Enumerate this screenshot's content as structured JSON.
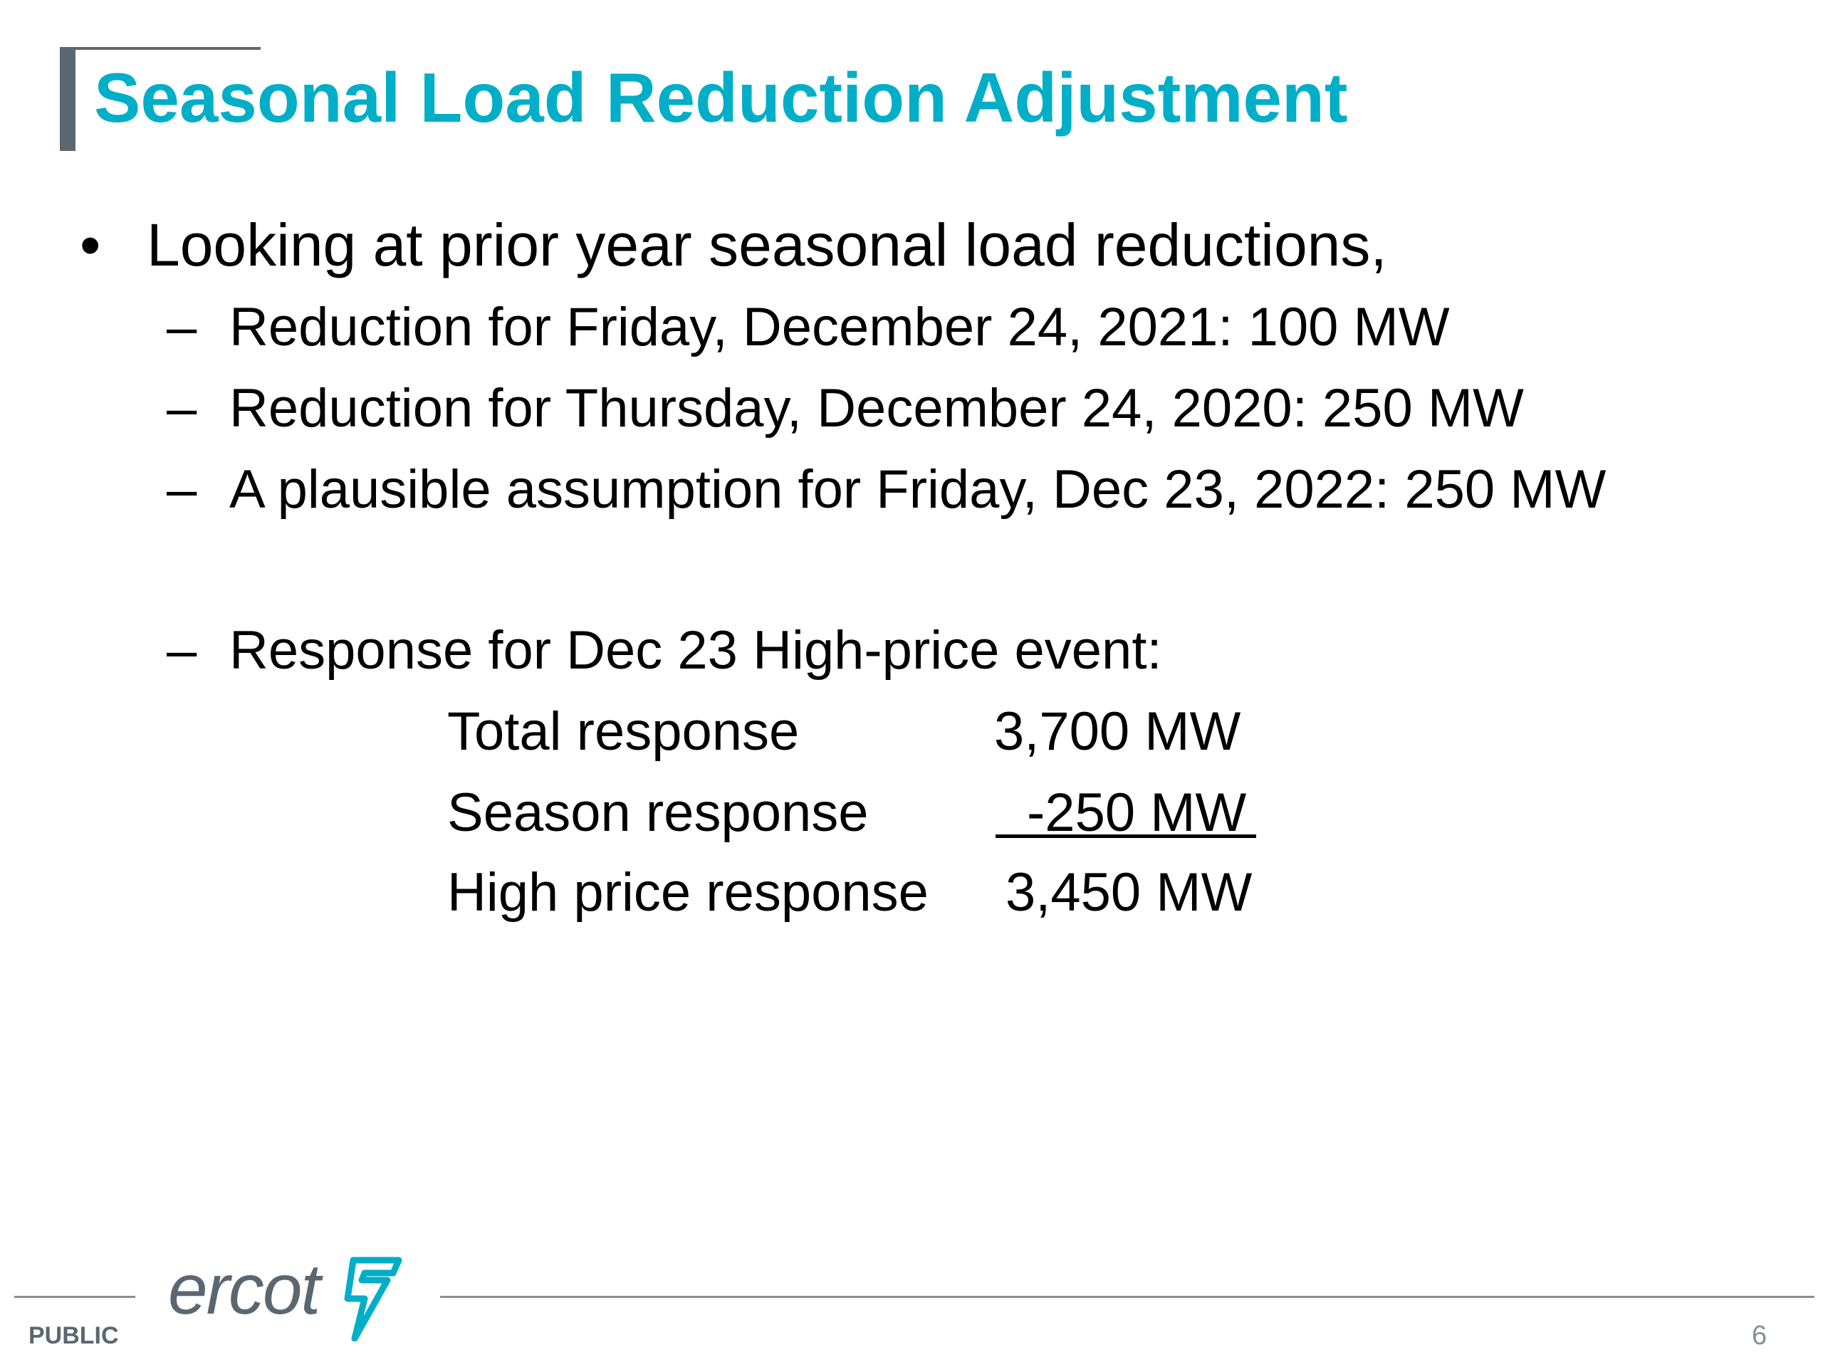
{
  "slide": {
    "title": "Seasonal Load Reduction Adjustment",
    "bullet": {
      "symbol": "•",
      "text": "Looking at prior year seasonal load reductions,"
    },
    "sub_bullets": [
      {
        "dash": "–",
        "text": "Reduction for Friday, December 24, 2021: 100 MW"
      },
      {
        "dash": "–",
        "text": "Reduction for Thursday, December 24, 2020: 250 MW"
      },
      {
        "dash": "–",
        "text": "A plausible assumption for Friday, Dec 23, 2022: 250 MW"
      },
      {
        "dash": "–",
        "text": "Response for Dec 23 High-price event:"
      }
    ],
    "response_table": [
      {
        "label": "Total response",
        "value": "3,700 MW"
      },
      {
        "label": "Season response",
        "value": "-250 MW"
      },
      {
        "label": "High price response",
        "value": "3,450 MW"
      }
    ]
  },
  "footer": {
    "logo_text": "ercot",
    "classification": "PUBLIC",
    "page_number": "6"
  },
  "colors": {
    "title": "#00aec7",
    "accent_gray": "#5b6770",
    "text": "#000000"
  }
}
